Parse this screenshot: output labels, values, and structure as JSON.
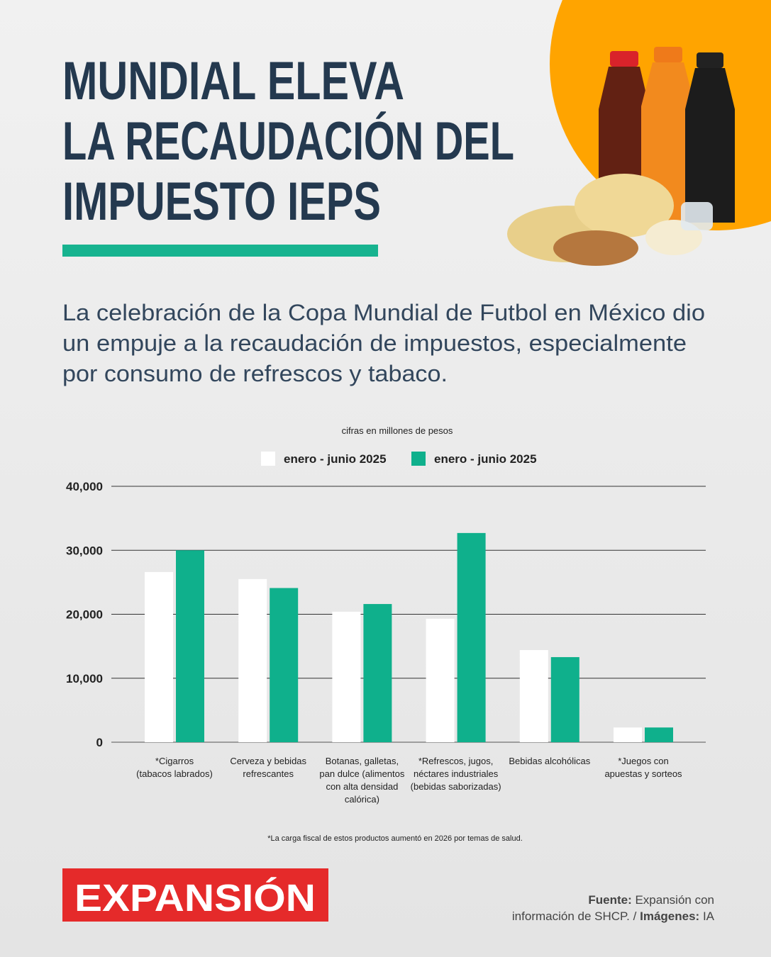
{
  "header": {
    "title": [
      "MUNDIAL ELEVA",
      "LA RECAUDACIÓN DEL",
      "IMPUESTO IEPS"
    ],
    "intro": [
      "La celebración de la Copa Mundial de Futbol en México dio",
      "un empuje a la recaudación de impuestos, especialmente",
      "por consumo de refrescos y tabaco."
    ]
  },
  "chart_data": {
    "type": "bar",
    "note": "cifras en millones de pesos",
    "categories": [
      [
        "*Cigarros",
        "(tabacos labrados)"
      ],
      [
        "Cerveza y bebidas",
        "refrescantes"
      ],
      [
        "Botanas, galletas,",
        "pan dulce (alimentos",
        "con alta densidad",
        "calórica)"
      ],
      [
        "*Refrescos, jugos,",
        "néctares industriales",
        "(bebidas saborizadas)"
      ],
      [
        "Bebidas alcohólicas"
      ],
      [
        "*Juegos con",
        "apuestas y sorteos"
      ]
    ],
    "series": [
      {
        "name": "enero - junio 2025",
        "color": "#ffffff",
        "values": [
          26600,
          25500,
          20400,
          19300,
          14400,
          2300
        ]
      },
      {
        "name": "enero - junio 2025",
        "color": "#0fb08c",
        "values": [
          30000,
          24100,
          21600,
          32700,
          13300,
          2300
        ]
      }
    ],
    "ylim": [
      0,
      40000
    ],
    "yticks": [
      0,
      {
        "value": 10000,
        "label": "10,000"
      },
      {
        "value": 20000,
        "label": "20,000"
      },
      {
        "value": 30000,
        "label": "30,000"
      },
      {
        "value": 40000,
        "label": "40,000"
      }
    ],
    "grid": true,
    "footnote": "*La carga fiscal de estos productos aumentó en 2026 por temas de salud."
  },
  "footer": {
    "logo": "EXPANSIÓN",
    "source_label": "Fuente:",
    "source_1": "Expansión con",
    "source_2": "información de SHCP.",
    "separator": "/",
    "images_label": "Imágenes:",
    "images": "IA"
  }
}
